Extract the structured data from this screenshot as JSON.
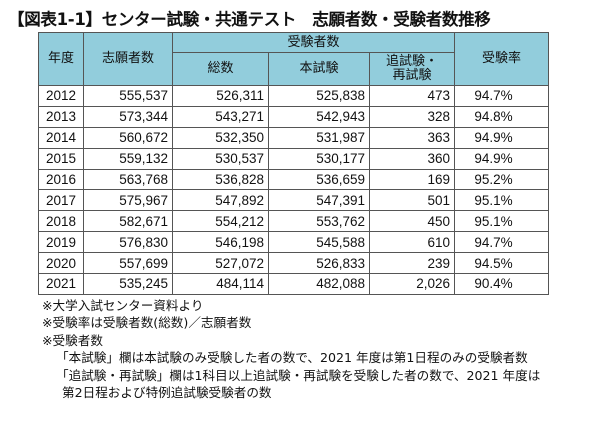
{
  "title": "【図表1-1】センター試験・共通テスト　志願者数・受験者数推移",
  "table": {
    "headers": {
      "year": "年度",
      "applicants": "志願者数",
      "examinees_group": "受験者数",
      "total": "総数",
      "main_exam": "本試験",
      "makeup_exam": "追試験・再試験",
      "makeup_line1": "追試験・",
      "makeup_line2": "再試験",
      "rate": "受験率"
    },
    "header_bg": "#92cddc",
    "rows": [
      [
        "2012",
        "555,537",
        "526,311",
        "525,838",
        "473",
        "94.7%"
      ],
      [
        "2013",
        "573,344",
        "543,271",
        "542,943",
        "328",
        "94.8%"
      ],
      [
        "2014",
        "560,672",
        "532,350",
        "531,987",
        "363",
        "94.9%"
      ],
      [
        "2015",
        "559,132",
        "530,537",
        "530,177",
        "360",
        "94.9%"
      ],
      [
        "2016",
        "563,768",
        "536,828",
        "536,659",
        "169",
        "95.2%"
      ],
      [
        "2017",
        "575,967",
        "547,892",
        "547,391",
        "501",
        "95.1%"
      ],
      [
        "2018",
        "582,671",
        "554,212",
        "553,762",
        "450",
        "95.1%"
      ],
      [
        "2019",
        "576,830",
        "546,198",
        "545,588",
        "610",
        "94.7%"
      ],
      [
        "2020",
        "557,699",
        "527,072",
        "526,833",
        "239",
        "94.5%"
      ],
      [
        "2021",
        "535,245",
        "484,114",
        "482,088",
        "2,026",
        "90.4%"
      ]
    ]
  },
  "notes": [
    "※大学入試センター資料より",
    "※受験率は受験者数(総数)／志願者数",
    "※受験者数",
    "「本試験」欄は本試験のみ受験した者の数で、2021 年度は第1日程のみの受験者数",
    "「追試験・再試験」欄は1科目以上追試験・再試験を受験した者の数で、2021 年度は",
    "第2日程および特例追試験受験者の数"
  ]
}
